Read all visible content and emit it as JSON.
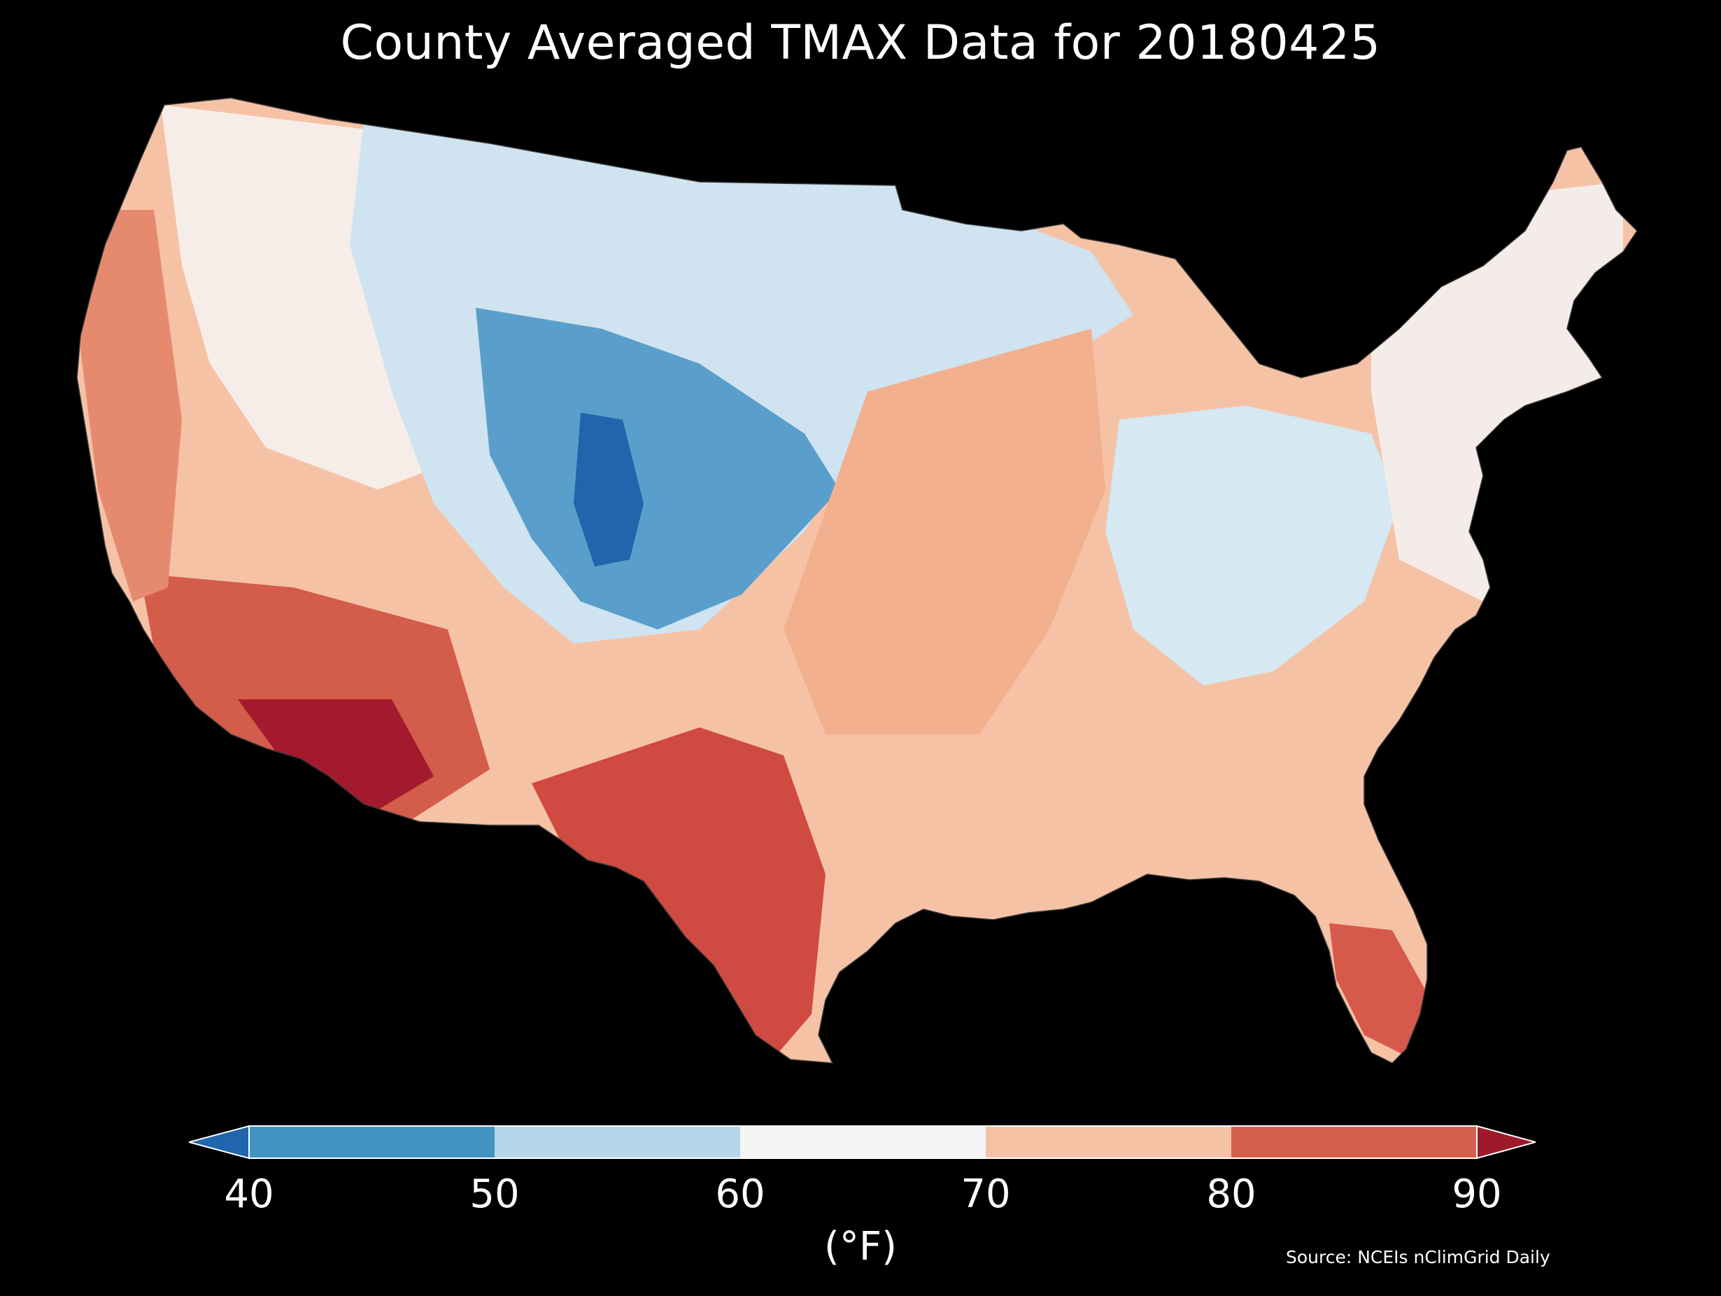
{
  "title": "County Averaged TMAX Data for 20180425",
  "colors": {
    "background": "#000000",
    "text": "#ffffff"
  },
  "map": {
    "region": "contiguous-united-states",
    "boundaries": "county",
    "regional_pattern": [
      {
        "area": "pacific-northwest-coast",
        "temp_band": "70-80"
      },
      {
        "area": "california-coast",
        "temp_band": "70-80"
      },
      {
        "area": "california-central-valley",
        "temp_band": "80-90"
      },
      {
        "area": "great-basin",
        "temp_band": "60-70"
      },
      {
        "area": "northern-rockies-montana",
        "temp_band": "50-60"
      },
      {
        "area": "wyoming-colorado-core",
        "temp_band": "40-50"
      },
      {
        "area": "southeast-colorado-pocket",
        "temp_band": "below-40"
      },
      {
        "area": "northern-plains",
        "temp_band": "50-60"
      },
      {
        "area": "upper-midwest",
        "temp_band": "50-60"
      },
      {
        "area": "southern-arizona-sonoran",
        "temp_band": "above-90"
      },
      {
        "area": "southwest-desert",
        "temp_band": "80-90"
      },
      {
        "area": "new-mexico",
        "temp_band": "70-80"
      },
      {
        "area": "west-texas",
        "temp_band": "80-90"
      },
      {
        "area": "south-texas",
        "temp_band": "80-90"
      },
      {
        "area": "central-plains-iowa-missouri",
        "temp_band": "70-80"
      },
      {
        "area": "deep-south-gulf-coast",
        "temp_band": "70-80"
      },
      {
        "area": "ohio-valley-appalachians",
        "temp_band": "50-60"
      },
      {
        "area": "mid-atlantic",
        "temp_band": "60-70"
      },
      {
        "area": "southeast-carolinas-georgia",
        "temp_band": "70-80"
      },
      {
        "area": "florida-peninsula",
        "temp_band": "80-90"
      },
      {
        "area": "new-england",
        "temp_band": "60-70"
      }
    ]
  },
  "colorbar": {
    "ticks": [
      "40",
      "50",
      "60",
      "70",
      "80",
      "90"
    ],
    "tick_values": [
      40,
      50,
      60,
      70,
      80,
      90
    ],
    "unit_label": "(°F)",
    "bands": [
      {
        "range": "below 40",
        "color": "#2166ac"
      },
      {
        "range": "40-50",
        "color": "#4393c3"
      },
      {
        "range": "50-60",
        "color": "#b5d6e8"
      },
      {
        "range": "60-70",
        "color": "#f5f5f5"
      },
      {
        "range": "70-80",
        "color": "#f6c2a6"
      },
      {
        "range": "80-90",
        "color": "#d6604d"
      },
      {
        "range": "above 90",
        "color": "#9e1a2b"
      }
    ],
    "extend": "both"
  },
  "source_note": "Source: NCEIs nClimGrid Daily"
}
